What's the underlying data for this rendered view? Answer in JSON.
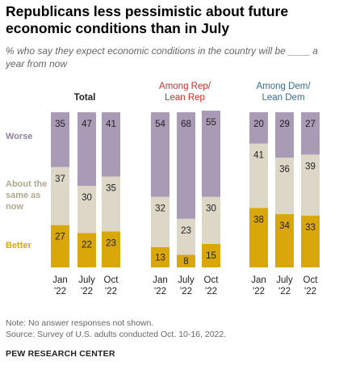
{
  "title": "Republicans less pessimistic about future economic conditions than in July",
  "subtitle": "% who say they expect economic conditions in the country will be ____ a year from now",
  "colors": {
    "Worse": "#a99bb5",
    "About the same as now": "#dcd7c6",
    "Better": "#d9a70a",
    "rep_label": "#c9302c",
    "dem_label": "#3d6a8f",
    "worse_label": "#8f7fa1",
    "same_label": "#aea88f",
    "better_label": "#d9a70a"
  },
  "chart_data": {
    "type": "bar",
    "stacked": true,
    "ylim": [
      0,
      100
    ],
    "categories": [
      "Jan '22",
      "July '22",
      "Oct '22"
    ],
    "groups": [
      {
        "label": "Total",
        "series": [
          {
            "name": "Better",
            "values": [
              27,
              22,
              23
            ]
          },
          {
            "name": "About the same as now",
            "values": [
              37,
              30,
              35
            ]
          },
          {
            "name": "Worse",
            "values": [
              35,
              47,
              41
            ]
          }
        ]
      },
      {
        "label": "Among Rep/ Lean Rep",
        "series": [
          {
            "name": "Better",
            "values": [
              13,
              8,
              15
            ]
          },
          {
            "name": "About the same as now",
            "values": [
              32,
              23,
              30
            ]
          },
          {
            "name": "Worse",
            "values": [
              54,
              68,
              55
            ]
          }
        ]
      },
      {
        "label": "Among Dem/ Lean Dem",
        "series": [
          {
            "name": "Better",
            "values": [
              38,
              34,
              33
            ]
          },
          {
            "name": "About the same as now",
            "values": [
              41,
              36,
              39
            ]
          },
          {
            "name": "Worse",
            "values": [
              20,
              29,
              27
            ]
          }
        ]
      }
    ],
    "row_labels": [
      "Worse",
      "About the same as now",
      "Better"
    ],
    "x_tick_labels": [
      [
        "Jan",
        "'22"
      ],
      [
        "July",
        "'22"
      ],
      [
        "Oct",
        "'22"
      ]
    ]
  },
  "notes": {
    "note": "Note: No answer responses not shown.",
    "source": "Source: Survey of U.S. adults conducted Oct. 10-16, 2022."
  },
  "brand": "PEW RESEARCH CENTER"
}
